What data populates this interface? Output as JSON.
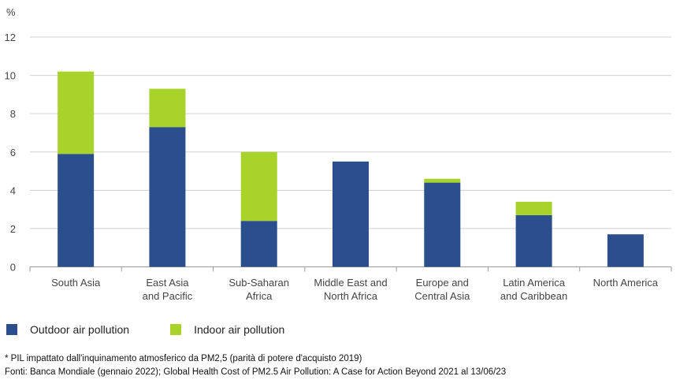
{
  "chart_data": {
    "type": "bar",
    "stacked": true,
    "ylabel": "%",
    "ylim": [
      0,
      12
    ],
    "yticks": [
      0,
      2,
      4,
      6,
      8,
      10,
      12
    ],
    "categories": [
      [
        "South Asia"
      ],
      [
        "East Asia",
        "and Pacific"
      ],
      [
        "Sub-Saharan",
        "Africa"
      ],
      [
        "Middle East and",
        "North Africa"
      ],
      [
        "Europe and",
        "Central Asia"
      ],
      [
        "Latin America",
        "and Caribbean"
      ],
      [
        "North America"
      ]
    ],
    "series": [
      {
        "name": "Outdoor air pollution",
        "color": "#2b4f8c",
        "values": [
          5.9,
          7.3,
          2.4,
          5.5,
          4.4,
          2.7,
          1.7
        ]
      },
      {
        "name": "Indoor air pollution",
        "color": "#a8d32a",
        "values": [
          4.3,
          2.0,
          3.6,
          0.0,
          0.2,
          0.7,
          0.0
        ]
      }
    ],
    "legend_position": "bottom-left"
  },
  "footnote": "* PIL impattato dall'inquinamento atmosferico da PM2,5 (parità di potere d'acquisto 2019)",
  "sources": "Fonti: Banca Mondiale (gennaio 2022); Global Health Cost of PM2.5 Air Pollution: A Case for Action Beyond 2021 al 13/06/23"
}
